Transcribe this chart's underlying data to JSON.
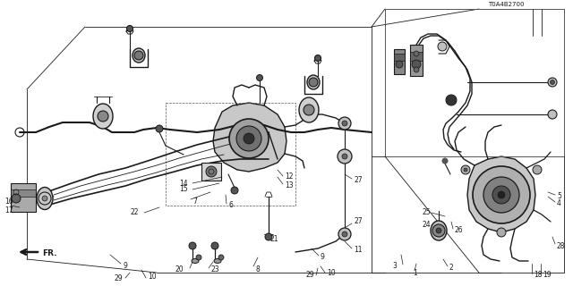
{
  "background_color": "#ffffff",
  "line_color": "#1a1a1a",
  "diagram_code": "T0A4B2700",
  "fig_width": 6.4,
  "fig_height": 3.2,
  "dpi": 100
}
